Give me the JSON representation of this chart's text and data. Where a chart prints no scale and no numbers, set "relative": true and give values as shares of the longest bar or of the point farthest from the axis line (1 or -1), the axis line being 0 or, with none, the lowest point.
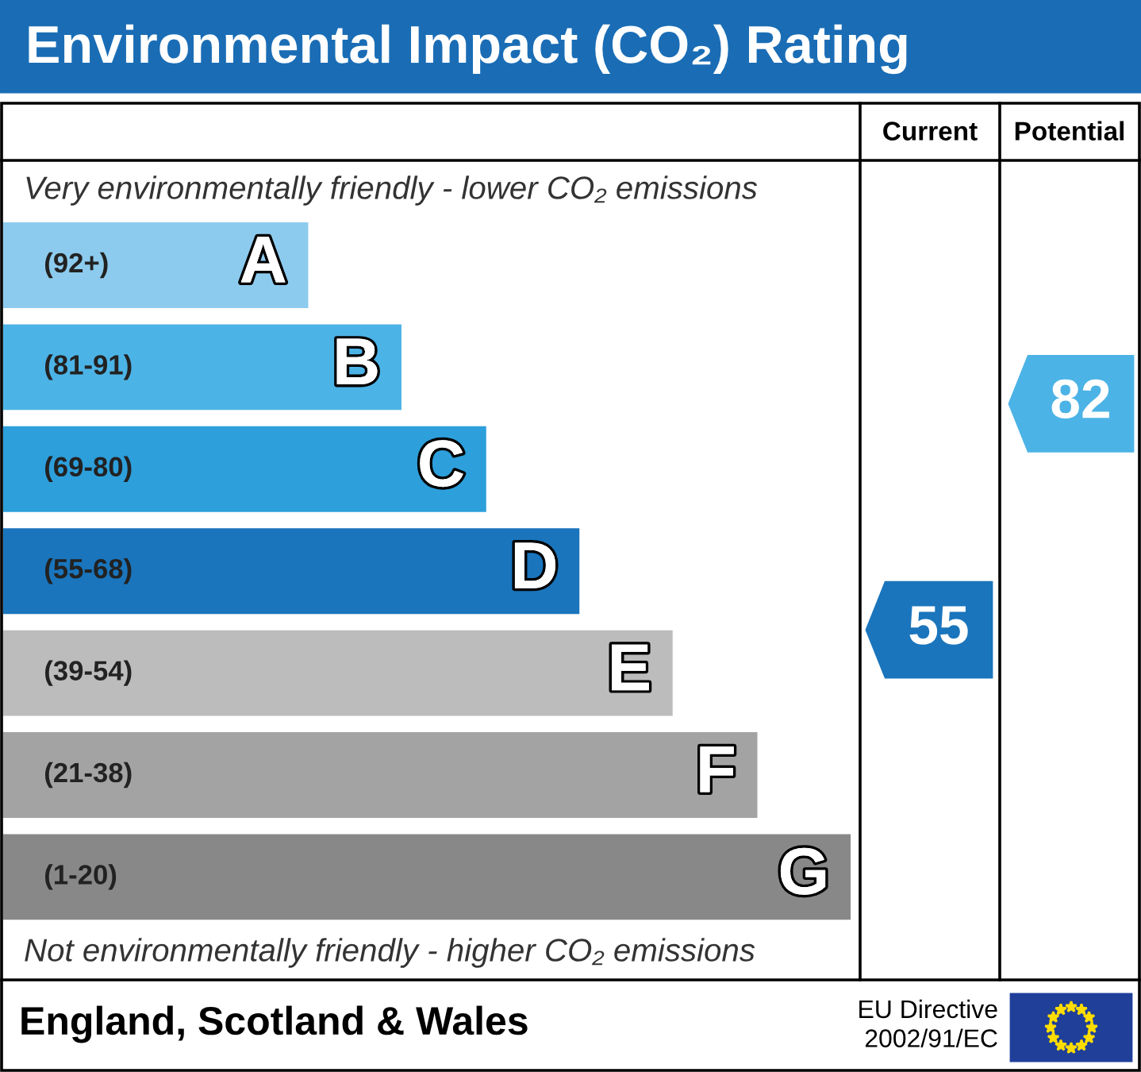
{
  "chart_data": {
    "type": "bar",
    "orientation": "horizontal",
    "relative": true,
    "title": "Environmental Impact (CO₂) Rating",
    "categories": [
      "A",
      "B",
      "C",
      "D",
      "E",
      "F",
      "G"
    ],
    "values": [
      0.36,
      0.47,
      0.57,
      0.68,
      0.79,
      0.89,
      1
    ],
    "colors": [
      "#8dcbee",
      "#4cb3e6",
      "#2d9fdb",
      "#1a75bc",
      "#bcbcbc",
      "#a3a3a3",
      "#888888"
    ],
    "annotations": [
      "Very environmentally friendly - lower CO₂ emissions",
      "Not environmentally friendly - higher CO₂ emissions",
      "England, Scotland & Wales",
      "EU Directive\n2002/91/EC",
      "Current",
      "Potential",
      "55",
      "82",
      "(92+)",
      "(81-91)",
      "(69-80)",
      "(55-68)",
      "(39-54)",
      "(21-38)",
      "(1-20)"
    ]
  }
}
